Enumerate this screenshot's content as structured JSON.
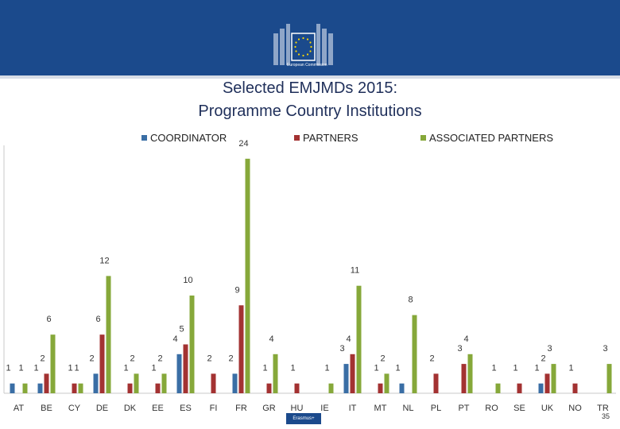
{
  "header": {
    "logo_icon": "eu-flag-building-icon",
    "logo_text": "European Commission"
  },
  "chart_data": {
    "type": "bar",
    "title_line1": "Selected EMJMDs 2015:",
    "title_line2": "Programme Country Institutions",
    "legend_position": "top",
    "categories": [
      "AT",
      "BE",
      "CY",
      "DE",
      "DK",
      "EE",
      "ES",
      "FI",
      "FR",
      "GR",
      "HU",
      "IE",
      "IT",
      "MT",
      "NL",
      "PL",
      "PT",
      "RO",
      "SE",
      "UK",
      "NO",
      "TR"
    ],
    "series": [
      {
        "name": "COORDINATOR",
        "color": "#3a6ea5",
        "values": [
          1,
          1,
          null,
          2,
          null,
          null,
          4,
          null,
          2,
          null,
          null,
          null,
          3,
          null,
          1,
          null,
          null,
          null,
          null,
          1,
          null,
          null
        ]
      },
      {
        "name": "PARTNERS",
        "color": "#a33232",
        "values": [
          null,
          2,
          1,
          6,
          1,
          1,
          5,
          2,
          9,
          1,
          1,
          null,
          4,
          1,
          null,
          2,
          3,
          null,
          1,
          2,
          1,
          null
        ]
      },
      {
        "name": "ASSOCIATED PARTNERS",
        "color": "#86a83a",
        "values": [
          1,
          6,
          1,
          12,
          2,
          2,
          10,
          null,
          24,
          4,
          null,
          1,
          11,
          2,
          8,
          null,
          4,
          1,
          null,
          3,
          null,
          3
        ]
      }
    ],
    "ylim": [
      0,
      25
    ],
    "grid": false
  },
  "footer": {
    "logo_text": "Erasmus+",
    "page_number": "35"
  }
}
